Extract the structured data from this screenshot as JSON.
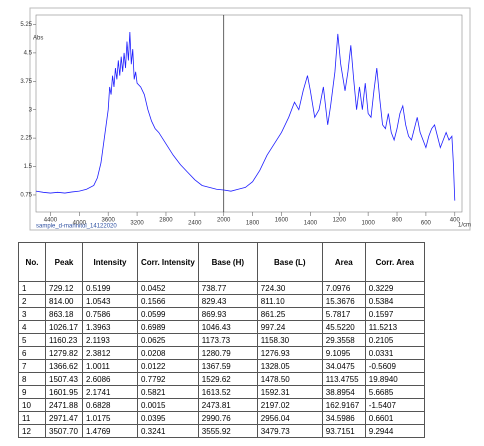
{
  "chart_data": {
    "type": "line",
    "y_label": "Abs",
    "x_label": "1/cm",
    "file_label": "sample_d-mannitol_14122020",
    "xlim": [
      4600,
      350
    ],
    "ylim": [
      0.3,
      5.5
    ],
    "xticks": [
      4400,
      4000,
      3600,
      3200,
      2800,
      2400,
      2000,
      1800,
      1600,
      1400,
      1200,
      1000,
      800,
      600,
      400
    ],
    "yticks": [
      0.75,
      1.5,
      2.25,
      3,
      3.75,
      4.5,
      5.25
    ],
    "x": [
      4600,
      4500,
      4400,
      4300,
      4200,
      4100,
      4000,
      3900,
      3800,
      3750,
      3700,
      3650,
      3600,
      3580,
      3560,
      3540,
      3520,
      3500,
      3480,
      3460,
      3440,
      3420,
      3400,
      3380,
      3360,
      3340,
      3320,
      3300,
      3280,
      3260,
      3240,
      3220,
      3200,
      3150,
      3100,
      3050,
      3000,
      2950,
      2900,
      2800,
      2700,
      2600,
      2500,
      2400,
      2300,
      2200,
      2100,
      2000,
      1950,
      1900,
      1850,
      1800,
      1750,
      1700,
      1650,
      1600,
      1550,
      1510,
      1480,
      1450,
      1420,
      1400,
      1370,
      1340,
      1310,
      1280,
      1260,
      1230,
      1210,
      1190,
      1160,
      1140,
      1120,
      1100,
      1080,
      1060,
      1040,
      1020,
      1000,
      980,
      960,
      940,
      920,
      900,
      880,
      860,
      840,
      820,
      800,
      780,
      760,
      740,
      720,
      700,
      680,
      660,
      640,
      620,
      600,
      580,
      560,
      540,
      520,
      500,
      480,
      460,
      440,
      420,
      410,
      400
    ],
    "values": [
      0.85,
      0.82,
      0.8,
      0.82,
      0.8,
      0.83,
      0.85,
      0.9,
      1.0,
      1.2,
      1.6,
      2.3,
      3.0,
      3.6,
      3.4,
      3.9,
      3.6,
      4.1,
      3.8,
      4.3,
      3.9,
      4.4,
      4.0,
      4.5,
      4.1,
      4.8,
      4.3,
      5.05,
      4.2,
      4.6,
      3.8,
      4.0,
      3.7,
      3.6,
      3.4,
      3.0,
      2.7,
      2.5,
      2.4,
      2.1,
      1.8,
      1.55,
      1.35,
      1.15,
      1.0,
      0.95,
      0.9,
      0.88,
      0.85,
      0.9,
      0.95,
      1.1,
      1.4,
      1.8,
      2.1,
      2.4,
      2.8,
      3.2,
      3.0,
      3.5,
      3.9,
      3.5,
      2.8,
      3.0,
      3.6,
      2.6,
      3.1,
      4.0,
      5.0,
      4.2,
      3.5,
      4.0,
      4.7,
      3.8,
      3.0,
      3.6,
      3.0,
      3.7,
      2.9,
      2.8,
      3.5,
      4.1,
      3.3,
      2.6,
      2.5,
      2.9,
      2.4,
      2.2,
      2.5,
      2.9,
      3.1,
      2.6,
      2.3,
      2.2,
      2.5,
      2.8,
      2.4,
      2.2,
      2.0,
      2.3,
      2.5,
      2.6,
      2.3,
      2.0,
      2.2,
      2.4,
      2.2,
      2.3,
      1.6,
      0.6
    ],
    "color": "#1f1fff"
  },
  "table": {
    "headers": [
      "No.",
      "Peak",
      "Intensity",
      "Corr. Intensity",
      "Base (H)",
      "Base (L)",
      "Area",
      "Corr. Area"
    ],
    "rows": [
      [
        "1",
        "729.12",
        "0.5199",
        "0.0452",
        "738.77",
        "724.30",
        "7.0976",
        "0.3229"
      ],
      [
        "2",
        "814.00",
        "1.0543",
        "0.1566",
        "829.43",
        "811.10",
        "15.3676",
        "0.5384"
      ],
      [
        "3",
        "863.18",
        "0.7586",
        "0.0599",
        "869.93",
        "861.25",
        "5.7817",
        "0.1597"
      ],
      [
        "4",
        "1026.17",
        "1.3963",
        "0.6989",
        "1046.43",
        "997.24",
        "45.5220",
        "11.5213"
      ],
      [
        "5",
        "1160.23",
        "2.1193",
        "0.0625",
        "1173.73",
        "1158.30",
        "29.3558",
        "0.2105"
      ],
      [
        "6",
        "1279.82",
        "2.3812",
        "0.0208",
        "1280.79",
        "1276.93",
        "9.1095",
        "0.0331"
      ],
      [
        "7",
        "1366.62",
        "1.0011",
        "0.0122",
        "1367.59",
        "1328.05",
        "34.0475",
        "-0.5609"
      ],
      [
        "8",
        "1507.43",
        "2.6086",
        "0.7792",
        "1529.62",
        "1478.50",
        "113.4755",
        "19.8940"
      ],
      [
        "9",
        "1601.95",
        "2.1741",
        "0.5821",
        "1613.52",
        "1592.31",
        "38.8954",
        "5.6685"
      ],
      [
        "10",
        "2471.88",
        "0.6828",
        "0.0015",
        "2473.81",
        "2197.02",
        "162.9167",
        "-1.5407"
      ],
      [
        "11",
        "2971.47",
        "1.0175",
        "0.0395",
        "2990.76",
        "2956.04",
        "34.5986",
        "0.6601"
      ],
      [
        "12",
        "3507.70",
        "1.4769",
        "0.3241",
        "3555.92",
        "3479.73",
        "93.7151",
        "9.2944"
      ]
    ]
  }
}
